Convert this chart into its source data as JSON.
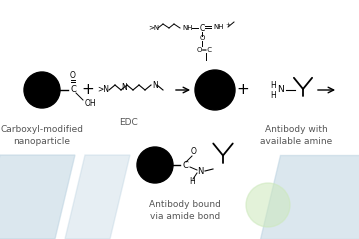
{
  "bg_color": "#ffffff",
  "text_color": "#555555",
  "label_fontsize": 6.5,
  "labels": {
    "carboxyl": "Carboxyl-modified\nnanoparticle",
    "edc": "EDC",
    "antibody_avail": "Antibody with\navailable amine",
    "antibody_bound": "Antibody bound\nvia amide bond"
  }
}
